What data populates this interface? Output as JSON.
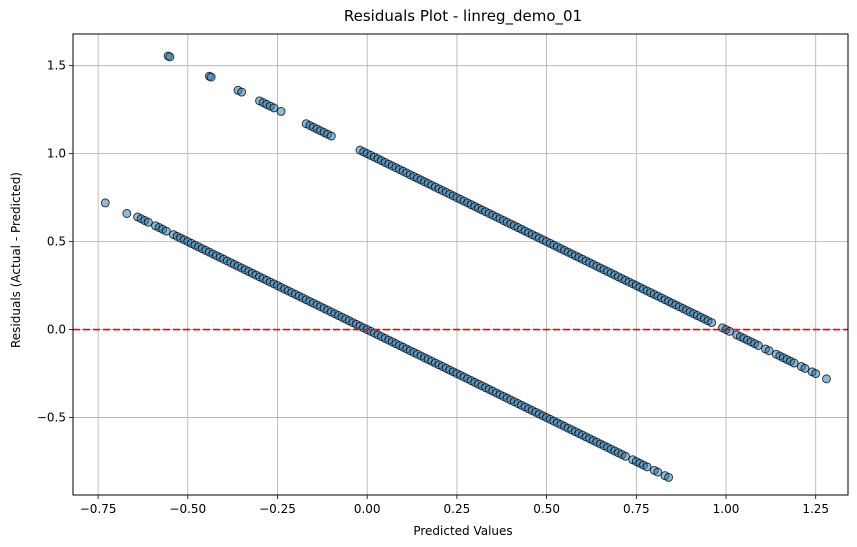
{
  "chart_data": {
    "type": "scatter",
    "title": "Residuals Plot - linreg_demo_01",
    "xlabel": "Predicted Values",
    "ylabel": "Residuals (Actual - Predicted)",
    "xlim": [
      -0.82,
      1.34
    ],
    "ylim": [
      -0.94,
      1.68
    ],
    "xticks": [
      -0.75,
      -0.5,
      -0.25,
      0.0,
      0.25,
      0.5,
      0.75,
      1.0,
      1.25
    ],
    "xtick_labels": [
      "−0.75",
      "−0.50",
      "−0.25",
      "0.00",
      "0.25",
      "0.50",
      "0.75",
      "1.00",
      "1.25"
    ],
    "yticks": [
      -0.5,
      0.0,
      0.5,
      1.0,
      1.5
    ],
    "ytick_labels": [
      "−0.5",
      "0.0",
      "0.5",
      "1.0",
      "1.5"
    ],
    "grid": true,
    "reference_line": {
      "y": 0,
      "style": "dashed",
      "color": "#ff0000"
    },
    "marker_color": "#1f77b4",
    "marker_edge_color": "#000000",
    "marker_alpha": 0.5,
    "series": [
      {
        "x": [
          -0.73,
          -0.67,
          -0.64,
          -0.63,
          -0.62,
          -0.61,
          -0.59,
          -0.58,
          -0.57,
          -0.56,
          -0.54,
          -0.53,
          -0.52,
          -0.51,
          -0.5,
          -0.49,
          -0.48,
          -0.47,
          -0.46,
          -0.45,
          -0.44,
          -0.43,
          -0.42,
          -0.41,
          -0.4,
          -0.39,
          -0.38,
          -0.37,
          -0.36,
          -0.35,
          -0.34,
          -0.33,
          -0.32,
          -0.31,
          -0.3,
          -0.29,
          -0.28,
          -0.27,
          -0.26,
          -0.25,
          -0.24,
          -0.23,
          -0.22,
          -0.21,
          -0.2,
          -0.19,
          -0.18,
          -0.17,
          -0.16,
          -0.15,
          -0.14,
          -0.13,
          -0.12,
          -0.11,
          -0.1,
          -0.09,
          -0.08,
          -0.07,
          -0.06,
          -0.05,
          -0.04,
          -0.03,
          -0.02,
          -0.01,
          0.0,
          0.01,
          0.02,
          0.03,
          0.04,
          0.05,
          0.06,
          0.07,
          0.08,
          0.09,
          0.1,
          0.11,
          0.12,
          0.13,
          0.14,
          0.15,
          0.16,
          0.17,
          0.18,
          0.19,
          0.2,
          0.21,
          0.22,
          0.23,
          0.24,
          0.25,
          0.26,
          0.27,
          0.28,
          0.29,
          0.3,
          0.31,
          0.32,
          0.33,
          0.34,
          0.35,
          0.36,
          0.37,
          0.38,
          0.39,
          0.4,
          0.41,
          0.42,
          0.43,
          0.44,
          0.45,
          0.46,
          0.47,
          0.48,
          0.49,
          0.5,
          0.51,
          0.52,
          0.53,
          0.54,
          0.55,
          0.56,
          0.57,
          0.58,
          0.59,
          0.6,
          0.61,
          0.62,
          0.63,
          0.64,
          0.65,
          0.66,
          0.67,
          0.68,
          0.69,
          0.7,
          0.71,
          0.72,
          0.74,
          0.75,
          0.76,
          0.77,
          0.78,
          0.8,
          0.81,
          0.83,
          0.84,
          -0.555,
          -0.55,
          -0.44,
          -0.435,
          -0.36,
          -0.35,
          -0.3,
          -0.29,
          -0.28,
          -0.27,
          -0.26,
          -0.24,
          -0.17,
          -0.16,
          -0.15,
          -0.14,
          -0.13,
          -0.12,
          -0.11,
          -0.1,
          -0.02,
          -0.01,
          0.0,
          0.01,
          0.02,
          0.03,
          0.04,
          0.05,
          0.06,
          0.07,
          0.08,
          0.09,
          0.1,
          0.11,
          0.12,
          0.13,
          0.14,
          0.15,
          0.16,
          0.17,
          0.18,
          0.19,
          0.2,
          0.21,
          0.22,
          0.23,
          0.24,
          0.25,
          0.26,
          0.27,
          0.28,
          0.29,
          0.3,
          0.31,
          0.32,
          0.33,
          0.34,
          0.35,
          0.36,
          0.37,
          0.38,
          0.39,
          0.4,
          0.41,
          0.42,
          0.43,
          0.44,
          0.45,
          0.46,
          0.47,
          0.48,
          0.49,
          0.5,
          0.51,
          0.52,
          0.53,
          0.54,
          0.55,
          0.56,
          0.57,
          0.58,
          0.59,
          0.6,
          0.61,
          0.62,
          0.63,
          0.64,
          0.65,
          0.66,
          0.67,
          0.68,
          0.69,
          0.7,
          0.71,
          0.72,
          0.73,
          0.74,
          0.75,
          0.76,
          0.77,
          0.78,
          0.79,
          0.8,
          0.81,
          0.82,
          0.83,
          0.84,
          0.85,
          0.86,
          0.87,
          0.88,
          0.89,
          0.9,
          0.91,
          0.92,
          0.93,
          0.94,
          0.95,
          0.96,
          0.99,
          1.0,
          1.01,
          1.03,
          1.04,
          1.05,
          1.06,
          1.07,
          1.08,
          1.09,
          1.11,
          1.12,
          1.14,
          1.15,
          1.16,
          1.17,
          1.18,
          1.19,
          1.21,
          1.22,
          1.24,
          1.25,
          1.28
        ],
        "y": [
          0.72,
          0.66,
          0.64,
          0.63,
          0.62,
          0.61,
          0.59,
          0.58,
          0.57,
          0.56,
          0.54,
          0.53,
          0.52,
          0.51,
          0.5,
          0.49,
          0.48,
          0.47,
          0.46,
          0.45,
          0.44,
          0.43,
          0.42,
          0.41,
          0.4,
          0.39,
          0.38,
          0.37,
          0.36,
          0.35,
          0.34,
          0.33,
          0.32,
          0.31,
          0.3,
          0.29,
          0.28,
          0.27,
          0.26,
          0.25,
          0.24,
          0.23,
          0.22,
          0.21,
          0.2,
          0.19,
          0.18,
          0.17,
          0.16,
          0.15,
          0.14,
          0.13,
          0.12,
          0.11,
          0.1,
          0.09,
          0.08,
          0.07,
          0.06,
          0.05,
          0.04,
          0.03,
          0.02,
          0.01,
          0.0,
          -0.01,
          -0.02,
          -0.03,
          -0.04,
          -0.05,
          -0.06,
          -0.07,
          -0.08,
          -0.09,
          -0.1,
          -0.11,
          -0.12,
          -0.13,
          -0.14,
          -0.15,
          -0.16,
          -0.17,
          -0.18,
          -0.19,
          -0.2,
          -0.21,
          -0.22,
          -0.23,
          -0.24,
          -0.25,
          -0.26,
          -0.27,
          -0.28,
          -0.29,
          -0.3,
          -0.31,
          -0.32,
          -0.33,
          -0.34,
          -0.35,
          -0.36,
          -0.37,
          -0.38,
          -0.39,
          -0.4,
          -0.41,
          -0.42,
          -0.43,
          -0.44,
          -0.45,
          -0.46,
          -0.47,
          -0.48,
          -0.49,
          -0.5,
          -0.51,
          -0.52,
          -0.53,
          -0.54,
          -0.55,
          -0.56,
          -0.57,
          -0.58,
          -0.59,
          -0.6,
          -0.61,
          -0.62,
          -0.63,
          -0.64,
          -0.65,
          -0.66,
          -0.67,
          -0.68,
          -0.69,
          -0.7,
          -0.71,
          -0.72,
          -0.74,
          -0.75,
          -0.76,
          -0.77,
          -0.78,
          -0.8,
          -0.81,
          -0.83,
          -0.84,
          1.555,
          1.55,
          1.44,
          1.435,
          1.36,
          1.35,
          1.3,
          1.29,
          1.28,
          1.27,
          1.26,
          1.24,
          1.17,
          1.16,
          1.15,
          1.14,
          1.13,
          1.12,
          1.11,
          1.1,
          1.02,
          1.01,
          1.0,
          0.99,
          0.98,
          0.97,
          0.96,
          0.95,
          0.94,
          0.93,
          0.92,
          0.91,
          0.9,
          0.89,
          0.88,
          0.87,
          0.86,
          0.85,
          0.84,
          0.83,
          0.82,
          0.81,
          0.8,
          0.79,
          0.78,
          0.77,
          0.76,
          0.75,
          0.74,
          0.73,
          0.72,
          0.71,
          0.7,
          0.69,
          0.68,
          0.67,
          0.66,
          0.65,
          0.64,
          0.63,
          0.62,
          0.61,
          0.6,
          0.59,
          0.58,
          0.57,
          0.56,
          0.55,
          0.54,
          0.53,
          0.52,
          0.51,
          0.5,
          0.49,
          0.48,
          0.47,
          0.46,
          0.45,
          0.44,
          0.43,
          0.42,
          0.41,
          0.4,
          0.39,
          0.38,
          0.37,
          0.36,
          0.35,
          0.34,
          0.33,
          0.32,
          0.31,
          0.3,
          0.29,
          0.28,
          0.27,
          0.26,
          0.25,
          0.24,
          0.23,
          0.22,
          0.21,
          0.2,
          0.19,
          0.18,
          0.17,
          0.16,
          0.15,
          0.14,
          0.13,
          0.12,
          0.11,
          0.1,
          0.09,
          0.08,
          0.07,
          0.06,
          0.05,
          0.04,
          0.01,
          0.0,
          -0.01,
          -0.03,
          -0.04,
          -0.05,
          -0.06,
          -0.07,
          -0.08,
          -0.09,
          -0.11,
          -0.12,
          -0.14,
          -0.15,
          -0.16,
          -0.17,
          -0.18,
          -0.19,
          -0.21,
          -0.22,
          -0.24,
          -0.25,
          -0.28
        ]
      }
    ]
  }
}
